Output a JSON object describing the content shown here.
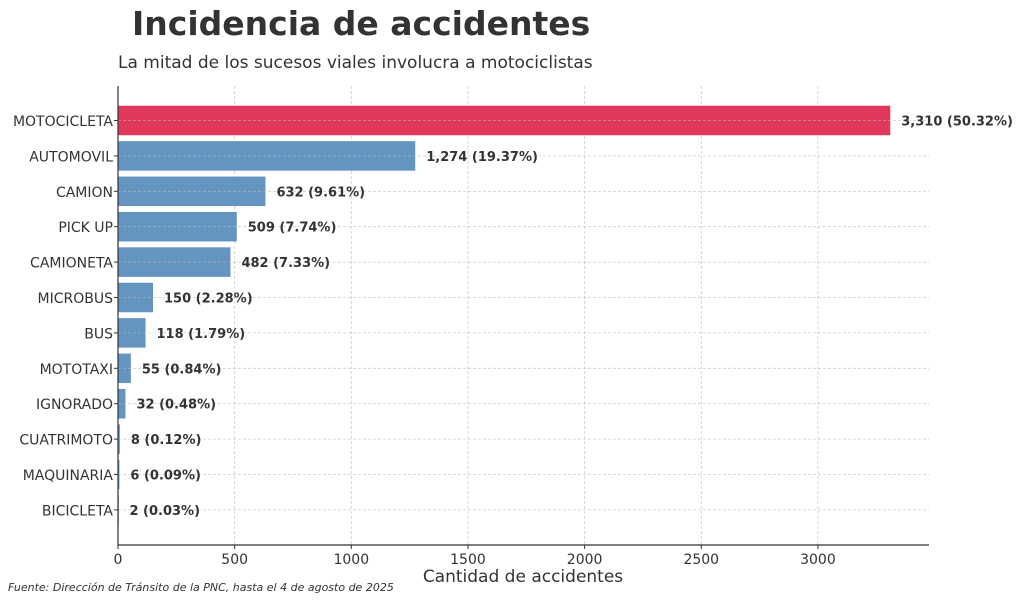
{
  "chart_data": {
    "type": "bar",
    "orientation": "horizontal",
    "title": "Incidencia de accidentes",
    "subtitle": "La mitad de los sucesos viales involucra a motociclistas",
    "xlabel": "Cantidad de accidentes",
    "ylabel": "",
    "xlim": [
      0,
      3476
    ],
    "xticks": [
      0,
      500,
      1000,
      1500,
      2000,
      2500,
      3000
    ],
    "grid": true,
    "categories": [
      "MOTOCICLETA",
      "AUTOMOVIL",
      "CAMION",
      "PICK UP",
      "CAMIONETA",
      "MICROBUS",
      "BUS",
      "MOTOTAXI",
      "IGNORADO",
      "CUATRIMOTO",
      "MAQUINARIA",
      "BICICLETA"
    ],
    "values": [
      3310,
      1274,
      632,
      509,
      482,
      150,
      118,
      55,
      32,
      8,
      6,
      2
    ],
    "data_labels": [
      "3,310 (50.32%)",
      "1,274 (19.37%)",
      "632 (9.61%)",
      "509 (7.74%)",
      "482 (7.33%)",
      "150 (2.28%)",
      "118 (1.79%)",
      "55 (0.84%)",
      "32 (0.48%)",
      "8 (0.12%)",
      "6 (0.09%)",
      "2 (0.03%)"
    ],
    "highlight_color": "#e0385a",
    "bar_color": "#6495c0",
    "source": "Fuente: Dirección de Tránsito de la PNC, hasta el 4 de agosto de 2025"
  }
}
